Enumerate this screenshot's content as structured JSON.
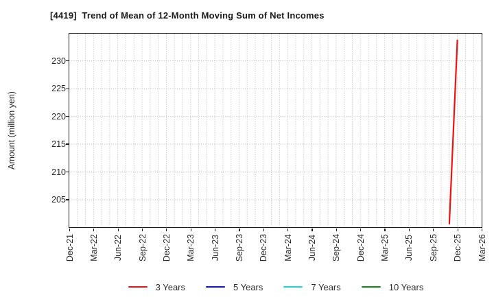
{
  "page": {
    "background": "#ffffff"
  },
  "chart_data": {
    "type": "line",
    "title": "[4419]  Trend of Mean of 12-Month Moving Sum of Net Incomes",
    "ylabel": "Amount (million yen)",
    "xlabel": "",
    "y_ticks": [
      205,
      210,
      215,
      220,
      225,
      230
    ],
    "ylim": [
      200.0,
      234.9
    ],
    "x_tick_labels": [
      "Dec-21",
      "Mar-22",
      "Jun-22",
      "Sep-22",
      "Dec-22",
      "Mar-23",
      "Jun-23",
      "Sep-23",
      "Dec-23",
      "Mar-24",
      "Jun-24",
      "Sep-24",
      "Dec-24",
      "Mar-25",
      "Jun-25",
      "Sep-25",
      "Dec-25",
      "Mar-26"
    ],
    "x_tick_interval_months": 3,
    "x_months_total": 51,
    "grid": true,
    "legend_position": "bottom",
    "series": [
      {
        "name": "3 Years",
        "color": "#ee1111",
        "points": [
          {
            "month_index": 47,
            "month": "Nov-25",
            "value": 200.7
          },
          {
            "month_index": 48,
            "month": "Dec-25",
            "value": 233.7
          }
        ]
      },
      {
        "name": "5 Years",
        "color": "#1111dd",
        "points": []
      },
      {
        "name": "7 Years",
        "color": "#17d8de",
        "points": []
      },
      {
        "name": "10 Years",
        "color": "#118811",
        "points": []
      }
    ],
    "colors": {
      "axis_border": "#1a1a1a",
      "grid": "#b3b3b3",
      "tick_label": "#2b2b2b",
      "title": "#1a1a1a"
    }
  }
}
